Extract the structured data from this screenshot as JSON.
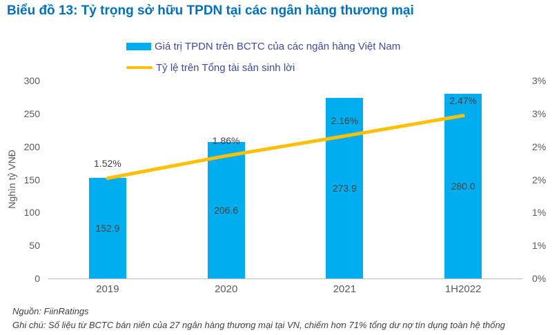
{
  "title": "Biểu đồ 13: Tỷ trọng sở hữu TPDN tại các ngân hàng thương mại",
  "legend": [
    {
      "label": "Giá trị TPDN trên BCTC của các ngân hàng Việt Nam",
      "swatch": "bar",
      "color": "#00AEEF"
    },
    {
      "label": "Tỷ lệ trên Tổng tài sản sinh lời",
      "swatch": "line",
      "color": "#FFC000"
    }
  ],
  "chart_data": {
    "type": "bar",
    "subtype": "bar+line combo, dual axis",
    "categories": [
      "2019",
      "2020",
      "2021",
      "1H2022"
    ],
    "series": [
      {
        "name": "Giá trị TPDN trên BCTC của các ngân hàng Việt Nam",
        "type": "bar",
        "axis": "left",
        "color": "#00AEEF",
        "values": [
          152.9,
          206.6,
          273.9,
          280.0
        ],
        "labels": [
          "152.9",
          "206.6",
          "273.9",
          "280.0"
        ]
      },
      {
        "name": "Tỷ lệ trên Tổng tài sản sinh lời",
        "type": "line",
        "axis": "right",
        "color": "#FFC000",
        "values": [
          1.52,
          1.86,
          2.16,
          2.47
        ],
        "labels": [
          "1.52%",
          "1.86%",
          "2.16%",
          "2.47%"
        ]
      }
    ],
    "left_axis": {
      "title": "Nghìn tỷ VNĐ",
      "min": 0,
      "max": 300,
      "ticks_bottom_to_top": [
        "0",
        "50",
        "100",
        "150",
        "200",
        "250",
        "300"
      ]
    },
    "right_axis": {
      "min": 0,
      "max": 3,
      "ticks_bottom_to_top": [
        "0%",
        "1%",
        "1%",
        "2%",
        "2%",
        "3%",
        "3%"
      ]
    },
    "grid": false,
    "legend_position": "top"
  },
  "footer": {
    "source": "Nguồn: FiinRatings",
    "note": "Ghi chú: Số liệu từ BCTC bán niên của 27 ngân hàng thương mại tại VN, chiếm hơn 71% tổng dư nợ tín dụng toàn hệ thống"
  },
  "colors": {
    "title_accent": "#0070C0",
    "legend_text": "#3E4AA0",
    "axis_text": "#595959",
    "data_label": "#404040"
  }
}
